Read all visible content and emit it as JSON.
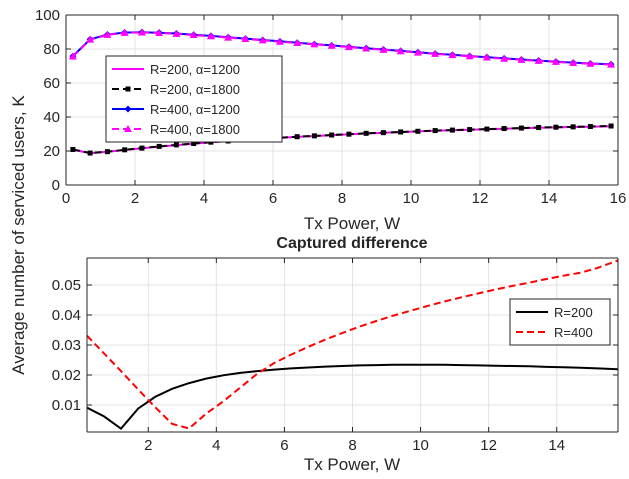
{
  "chart_data": [
    {
      "type": "line",
      "title": "",
      "xlabel": "Tx Power, W",
      "ylabel": "Average number of serviced users, K",
      "xlim": [
        0,
        16
      ],
      "ylim": [
        0,
        100
      ],
      "xticks": [
        0,
        2,
        4,
        6,
        8,
        10,
        12,
        14,
        16
      ],
      "yticks": [
        0,
        20,
        40,
        60,
        80,
        100
      ],
      "grid": true,
      "legend_position": "left",
      "x": [
        0.2,
        0.7,
        1.2,
        1.7,
        2.2,
        2.7,
        3.2,
        3.7,
        4.2,
        4.7,
        5.2,
        5.7,
        6.2,
        6.7,
        7.2,
        7.7,
        8.2,
        8.7,
        9.2,
        9.7,
        10.2,
        10.7,
        11.2,
        11.7,
        12.2,
        12.7,
        13.2,
        13.7,
        14.2,
        14.7,
        15.2,
        15.8
      ],
      "series": [
        {
          "name": "R=200, α=1200",
          "color": "#ff00ff",
          "style": "solid",
          "marker": "none",
          "values": [
            20.8,
            18.7,
            19.5,
            20.6,
            21.6,
            22.6,
            23.5,
            24.3,
            25.1,
            25.8,
            26.5,
            27.1,
            27.7,
            28.3,
            28.8,
            29.3,
            29.8,
            30.3,
            30.7,
            31.1,
            31.5,
            31.9,
            32.2,
            32.5,
            32.8,
            33.1,
            33.4,
            33.7,
            33.9,
            34.1,
            34.3,
            34.6
          ]
        },
        {
          "name": "R=200, α=1800",
          "color": "#000000",
          "style": "dashed",
          "marker": "square",
          "values": [
            20.9,
            18.8,
            19.6,
            20.7,
            21.7,
            22.7,
            23.6,
            24.4,
            25.2,
            25.9,
            26.6,
            27.2,
            27.8,
            28.4,
            28.9,
            29.4,
            29.9,
            30.4,
            30.8,
            31.2,
            31.6,
            32.0,
            32.3,
            32.6,
            32.9,
            33.2,
            33.5,
            33.8,
            34.0,
            34.2,
            34.4,
            34.7
          ]
        },
        {
          "name": "R=400, α=1200",
          "color": "#0000ff",
          "style": "solid",
          "marker": "diamond",
          "values": [
            75.8,
            85.7,
            88.5,
            89.7,
            89.9,
            89.6,
            89.1,
            88.4,
            87.7,
            86.9,
            86.1,
            85.3,
            84.5,
            83.7,
            82.9,
            82.1,
            81.3,
            80.5,
            79.7,
            78.9,
            78.1,
            77.3,
            76.6,
            75.9,
            75.2,
            74.5,
            73.8,
            73.2,
            72.6,
            72.0,
            71.5,
            71.0
          ]
        },
        {
          "name": "R=400, α=1800",
          "color": "#ff00ff",
          "style": "dashed",
          "marker": "triangle",
          "values": [
            75.6,
            85.5,
            88.3,
            89.5,
            89.7,
            89.4,
            88.9,
            88.2,
            87.5,
            86.7,
            85.9,
            85.1,
            84.3,
            83.5,
            82.7,
            81.9,
            81.1,
            80.3,
            79.5,
            78.7,
            77.9,
            77.1,
            76.4,
            75.7,
            75.0,
            74.3,
            73.6,
            73.0,
            72.4,
            71.8,
            71.3,
            70.8
          ]
        }
      ]
    },
    {
      "type": "line",
      "title": "Captured difference",
      "xlabel": "Tx Power, W",
      "ylabel": "",
      "xlim": [
        0.2,
        15.8
      ],
      "ylim": [
        0.001,
        0.059
      ],
      "xticks": [
        2,
        4,
        6,
        8,
        10,
        12,
        14
      ],
      "yticks": [
        0.01,
        0.02,
        0.03,
        0.04,
        0.05
      ],
      "grid": true,
      "legend_position": "right",
      "x": [
        0.2,
        0.7,
        1.2,
        1.7,
        2.2,
        2.7,
        3.2,
        3.7,
        4.2,
        4.7,
        5.2,
        5.7,
        6.2,
        6.7,
        7.2,
        7.7,
        8.2,
        8.7,
        9.2,
        9.7,
        10.2,
        10.7,
        11.2,
        11.7,
        12.2,
        12.7,
        13.2,
        13.7,
        14.2,
        14.7,
        15.2,
        15.8
      ],
      "series": [
        {
          "name": "R=200",
          "color": "#000000",
          "style": "solid",
          "values": [
            0.0091,
            0.0062,
            0.0021,
            0.0088,
            0.0127,
            0.0154,
            0.0173,
            0.0188,
            0.0199,
            0.0207,
            0.0213,
            0.0218,
            0.0222,
            0.0225,
            0.0228,
            0.023,
            0.0232,
            0.0233,
            0.0234,
            0.0234,
            0.0234,
            0.0234,
            0.0233,
            0.0232,
            0.0231,
            0.023,
            0.0229,
            0.0227,
            0.0226,
            0.0224,
            0.0222,
            0.0219
          ]
        },
        {
          "name": "R=400",
          "color": "#ff0000",
          "style": "dashed",
          "values": [
            0.0331,
            0.0272,
            0.0213,
            0.0152,
            0.0093,
            0.0037,
            0.0022,
            0.0071,
            0.0112,
            0.0158,
            0.0204,
            0.024,
            0.0268,
            0.0294,
            0.0318,
            0.034,
            0.0361,
            0.038,
            0.0398,
            0.0414,
            0.043,
            0.0445,
            0.0459,
            0.0472,
            0.0485,
            0.0497,
            0.0508,
            0.052,
            0.0531,
            0.0541,
            0.0557,
            0.0582
          ]
        }
      ]
    }
  ]
}
